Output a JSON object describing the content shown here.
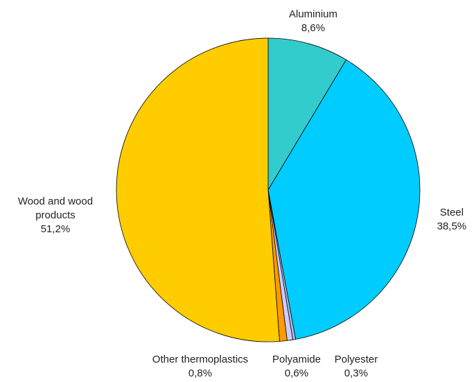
{
  "chart_data": {
    "type": "pie",
    "title": "",
    "start_angle_deg": 0,
    "direction": "clockwise",
    "slices": [
      {
        "label_lines": [
          "Aluminium"
        ],
        "value_label": "8,6%",
        "value": 8.6,
        "color": "#33CCCC"
      },
      {
        "label_lines": [
          "Steel"
        ],
        "value_label": "38,5%",
        "value": 38.5,
        "color": "#00CCFF"
      },
      {
        "label_lines": [
          "Polyester"
        ],
        "value_label": "0,3%",
        "value": 0.3,
        "color": "#AABEE6"
      },
      {
        "label_lines": [
          "Polyamide"
        ],
        "value_label": "0,6%",
        "value": 0.6,
        "color": "#CCCCFF"
      },
      {
        "label_lines": [
          "Other thermoplastics"
        ],
        "value_label": "0,8%",
        "value": 0.8,
        "color": "#FF9900"
      },
      {
        "label_lines": [
          "Wood and wood",
          "products"
        ],
        "value_label": "51,2%",
        "value": 51.2,
        "color": "#FFCC00"
      }
    ]
  }
}
